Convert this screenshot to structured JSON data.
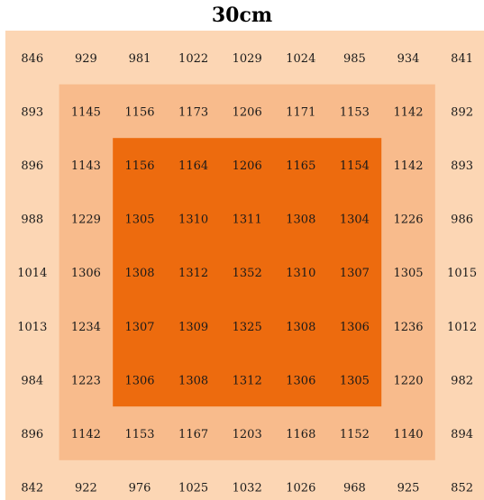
{
  "chart_data": {
    "type": "heatmap",
    "title": "30cm",
    "rows": [
      [
        846,
        929,
        981,
        1022,
        1029,
        1024,
        985,
        934,
        841
      ],
      [
        893,
        1145,
        1156,
        1173,
        1206,
        1171,
        1153,
        1142,
        892
      ],
      [
        896,
        1143,
        1156,
        1164,
        1206,
        1165,
        1154,
        1142,
        893
      ],
      [
        988,
        1229,
        1305,
        1310,
        1311,
        1308,
        1304,
        1226,
        986
      ],
      [
        1014,
        1306,
        1308,
        1312,
        1352,
        1310,
        1307,
        1305,
        1015
      ],
      [
        1013,
        1234,
        1307,
        1309,
        1325,
        1308,
        1306,
        1236,
        1012
      ],
      [
        984,
        1223,
        1306,
        1308,
        1312,
        1306,
        1305,
        1220,
        982
      ],
      [
        896,
        1142,
        1153,
        1167,
        1203,
        1168,
        1152,
        1140,
        894
      ],
      [
        842,
        922,
        976,
        1025,
        1032,
        1026,
        968,
        925,
        852
      ]
    ],
    "zone_colors": {
      "outer": "#fcd6b4",
      "middle": "#f8bb8c",
      "inner": "#ed6b0e"
    }
  }
}
